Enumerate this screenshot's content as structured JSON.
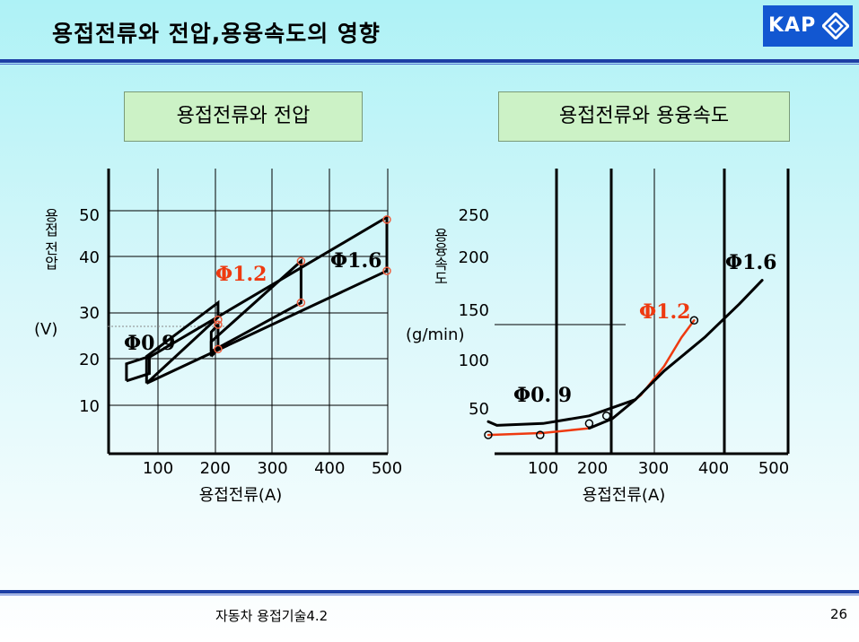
{
  "slide": {
    "title": "용접전류와 전압,용융속도의 영향",
    "logo_text": "KAP",
    "footer": "자동차 용접기술4.2",
    "page_number": "26"
  },
  "colors": {
    "accent_red": "#ee3a10",
    "rule_blue": "#1d3fa5",
    "logo_blue": "#1257d1",
    "label_box_green": "#ccf2c6"
  },
  "chart_data": [
    {
      "type": "area",
      "title": "용접전류와 전압",
      "xlabel": "용접전류(A)",
      "ylabel_lines": [
        "용접 전압",
        "(V)"
      ],
      "x_ticks": [
        100,
        200,
        300,
        400,
        500
      ],
      "y_ticks": [
        10,
        20,
        30,
        40,
        50
      ],
      "grid": true,
      "series": [
        {
          "name": "Φ0.9",
          "color": "#000000",
          "polygon": [
            [
              45,
              15
            ],
            [
              45,
              18.5
            ],
            [
              85,
              20
            ],
            [
              85,
              16.5
            ],
            [
              45,
              15
            ]
          ]
        },
        {
          "name": "Φ1.2",
          "color": "#ee3a10",
          "polygon": [
            [
              80,
              14.5
            ],
            [
              80,
              20
            ],
            [
              205,
              31
            ],
            [
              205,
              28
            ],
            [
              80,
              14.5
            ]
          ]
        },
        {
          "name": "",
          "color": "#000000",
          "polygon": [
            [
              193,
              20
            ],
            [
              193,
              25
            ],
            [
              205,
              26.5
            ],
            [
              205,
              21.5
            ],
            [
              193,
              20
            ]
          ]
        },
        {
          "name": "Φ1.6",
          "color": "#000000",
          "polygon": [
            [
              193,
              21
            ],
            [
              193,
              23
            ],
            [
              350,
              39.5
            ],
            [
              350,
              31
            ],
            [
              193,
              21
            ]
          ]
        },
        {
          "name": "",
          "color": "#000000",
          "polygon": [
            [
              80,
              14.5
            ],
            [
              500,
              37.5
            ],
            [
              500,
              48.5
            ],
            [
              80,
              19.5
            ]
          ]
        }
      ],
      "markers": [
        [
          500,
          48
        ],
        [
          500,
          37.5
        ],
        [
          350,
          39.5
        ],
        [
          350,
          31
        ],
        [
          205,
          26.5
        ],
        [
          205,
          21.5
        ],
        [
          205,
          27.5
        ]
      ]
    },
    {
      "type": "line",
      "title": "용접전류와 용융속도",
      "xlabel": "용접전류(A)",
      "ylabel_lines": [
        "용융속도",
        "(g/min)"
      ],
      "x_ticks": [
        100,
        200,
        300,
        400,
        500
      ],
      "y_ticks": [
        50,
        100,
        150,
        200,
        250
      ],
      "grid": true,
      "series": [
        {
          "name": "Φ0.  9",
          "color": "#000000",
          "points": [
            [
              5,
              32
            ],
            [
              20,
              28
            ],
            [
              100,
              30
            ],
            [
              180,
              38
            ],
            [
              260,
              55
            ]
          ]
        },
        {
          "name": "Φ1.2",
          "color": "#ee3a10",
          "points": [
            [
              5,
              18
            ],
            [
              100,
              20
            ],
            [
              180,
              25
            ],
            [
              220,
              35
            ],
            [
              270,
              60
            ],
            [
              310,
              90
            ],
            [
              340,
              120
            ],
            [
              362,
              138
            ]
          ]
        },
        {
          "name": "Φ1.6",
          "color": "#000000",
          "points": [
            [
              180,
              25
            ],
            [
              220,
              35
            ],
            [
              260,
              55
            ],
            [
              310,
              85
            ],
            [
              380,
              120
            ],
            [
              440,
              155
            ],
            [
              480,
              180
            ]
          ]
        }
      ],
      "markers": [
        [
          5,
          18
        ],
        [
          95,
          18
        ],
        [
          180,
          30
        ],
        [
          210,
          38
        ],
        [
          362,
          138
        ]
      ]
    }
  ]
}
